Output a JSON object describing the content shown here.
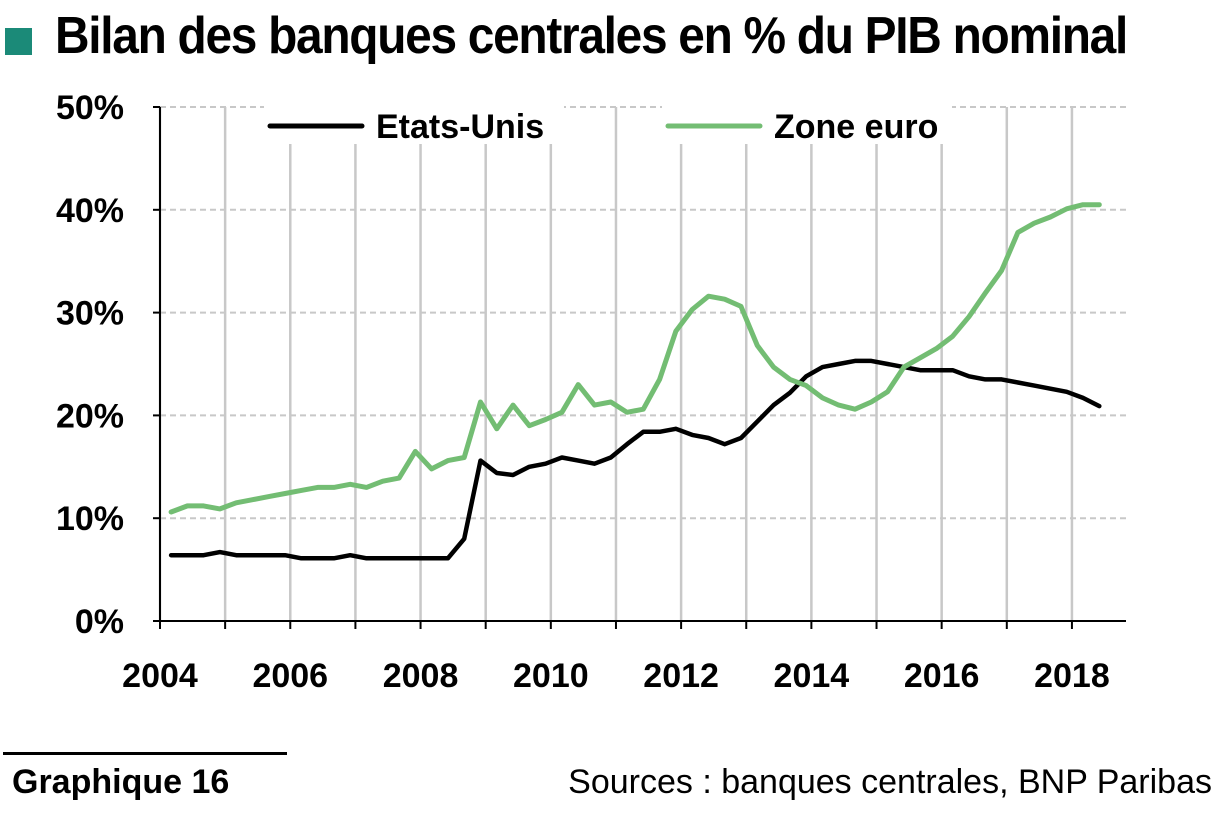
{
  "page": {
    "title": "Bilan des banques centrales en % du PIB nominal",
    "marker_color": "#1b8a78"
  },
  "chart_data": {
    "type": "line",
    "title": "Bilan des banques centrales en % du PIB nominal",
    "xlabel": "",
    "ylabel": "",
    "xlim": [
      2004,
      2018.83
    ],
    "ylim": [
      0,
      50
    ],
    "x_ticks": [
      2004,
      2006,
      2008,
      2010,
      2012,
      2014,
      2016,
      2018
    ],
    "x_tick_labels": [
      "2004",
      "2006",
      "2008",
      "2010",
      "2012",
      "2014",
      "2016",
      "2018"
    ],
    "x_minor_ticks": [
      2005,
      2007,
      2009,
      2011,
      2013,
      2015,
      2017
    ],
    "y_ticks": [
      0,
      10,
      20,
      30,
      40,
      50
    ],
    "y_tick_labels": [
      "0%",
      "10%",
      "20%",
      "30%",
      "40%",
      "50%"
    ],
    "grid": "vertical-solid-and-horizontal-dashed",
    "legend_position": "top",
    "series": [
      {
        "name": "Etats-Unis",
        "color": "#000000",
        "points": [
          [
            2004.17,
            6.4
          ],
          [
            2004.42,
            6.4
          ],
          [
            2004.67,
            6.4
          ],
          [
            2004.92,
            6.7
          ],
          [
            2005.17,
            6.4
          ],
          [
            2005.42,
            6.4
          ],
          [
            2005.67,
            6.4
          ],
          [
            2005.92,
            6.4
          ],
          [
            2006.17,
            6.1
          ],
          [
            2006.42,
            6.1
          ],
          [
            2006.67,
            6.1
          ],
          [
            2006.92,
            6.4
          ],
          [
            2007.17,
            6.1
          ],
          [
            2007.42,
            6.1
          ],
          [
            2007.67,
            6.1
          ],
          [
            2007.92,
            6.1
          ],
          [
            2008.17,
            6.1
          ],
          [
            2008.42,
            6.1
          ],
          [
            2008.67,
            8.0
          ],
          [
            2008.92,
            15.6
          ],
          [
            2009.17,
            14.4
          ],
          [
            2009.42,
            14.2
          ],
          [
            2009.67,
            15.0
          ],
          [
            2009.92,
            15.3
          ],
          [
            2010.17,
            15.9
          ],
          [
            2010.42,
            15.6
          ],
          [
            2010.67,
            15.3
          ],
          [
            2010.92,
            15.9
          ],
          [
            2011.17,
            17.2
          ],
          [
            2011.42,
            18.4
          ],
          [
            2011.67,
            18.4
          ],
          [
            2011.92,
            18.7
          ],
          [
            2012.17,
            18.1
          ],
          [
            2012.42,
            17.8
          ],
          [
            2012.67,
            17.2
          ],
          [
            2012.92,
            17.8
          ],
          [
            2013.17,
            19.4
          ],
          [
            2013.42,
            21.0
          ],
          [
            2013.67,
            22.2
          ],
          [
            2013.92,
            23.8
          ],
          [
            2014.17,
            24.7
          ],
          [
            2014.42,
            25.0
          ],
          [
            2014.67,
            25.3
          ],
          [
            2014.92,
            25.3
          ],
          [
            2015.17,
            25.0
          ],
          [
            2015.42,
            24.7
          ],
          [
            2015.67,
            24.4
          ],
          [
            2015.92,
            24.4
          ],
          [
            2016.17,
            24.4
          ],
          [
            2016.42,
            23.8
          ],
          [
            2016.67,
            23.5
          ],
          [
            2016.92,
            23.5
          ],
          [
            2017.17,
            23.2
          ],
          [
            2017.42,
            22.9
          ],
          [
            2017.67,
            22.6
          ],
          [
            2017.92,
            22.3
          ],
          [
            2018.17,
            21.7
          ],
          [
            2018.42,
            20.9
          ]
        ]
      },
      {
        "name": "Zone euro",
        "color": "#73bd73",
        "points": [
          [
            2004.17,
            10.6
          ],
          [
            2004.42,
            11.2
          ],
          [
            2004.67,
            11.2
          ],
          [
            2004.92,
            10.9
          ],
          [
            2005.17,
            11.5
          ],
          [
            2005.42,
            11.8
          ],
          [
            2005.67,
            12.1
          ],
          [
            2005.92,
            12.4
          ],
          [
            2006.17,
            12.7
          ],
          [
            2006.42,
            13.0
          ],
          [
            2006.67,
            13.0
          ],
          [
            2006.92,
            13.3
          ],
          [
            2007.17,
            13.0
          ],
          [
            2007.42,
            13.6
          ],
          [
            2007.67,
            13.9
          ],
          [
            2007.92,
            16.5
          ],
          [
            2008.17,
            14.8
          ],
          [
            2008.42,
            15.6
          ],
          [
            2008.67,
            15.9
          ],
          [
            2008.92,
            21.3
          ],
          [
            2009.17,
            18.7
          ],
          [
            2009.42,
            21.0
          ],
          [
            2009.67,
            19.0
          ],
          [
            2009.92,
            19.6
          ],
          [
            2010.17,
            20.3
          ],
          [
            2010.42,
            23.0
          ],
          [
            2010.67,
            21.0
          ],
          [
            2010.92,
            21.3
          ],
          [
            2011.17,
            20.3
          ],
          [
            2011.42,
            20.6
          ],
          [
            2011.67,
            23.5
          ],
          [
            2011.92,
            28.2
          ],
          [
            2012.17,
            30.3
          ],
          [
            2012.42,
            31.6
          ],
          [
            2012.67,
            31.3
          ],
          [
            2012.92,
            30.6
          ],
          [
            2013.17,
            26.8
          ],
          [
            2013.42,
            24.7
          ],
          [
            2013.67,
            23.5
          ],
          [
            2013.92,
            22.9
          ],
          [
            2014.17,
            21.7
          ],
          [
            2014.42,
            21.0
          ],
          [
            2014.67,
            20.6
          ],
          [
            2014.92,
            21.3
          ],
          [
            2015.17,
            22.3
          ],
          [
            2015.42,
            24.7
          ],
          [
            2015.67,
            25.6
          ],
          [
            2015.92,
            26.5
          ],
          [
            2016.17,
            27.7
          ],
          [
            2016.42,
            29.6
          ],
          [
            2016.67,
            31.9
          ],
          [
            2016.92,
            34.1
          ],
          [
            2017.17,
            37.8
          ],
          [
            2017.42,
            38.7
          ],
          [
            2017.67,
            39.3
          ],
          [
            2017.92,
            40.1
          ],
          [
            2018.17,
            40.5
          ],
          [
            2018.42,
            40.5
          ]
        ]
      }
    ]
  },
  "footer": {
    "label": "Graphique 16",
    "sources": "Sources : banques centrales, BNP Paribas"
  }
}
